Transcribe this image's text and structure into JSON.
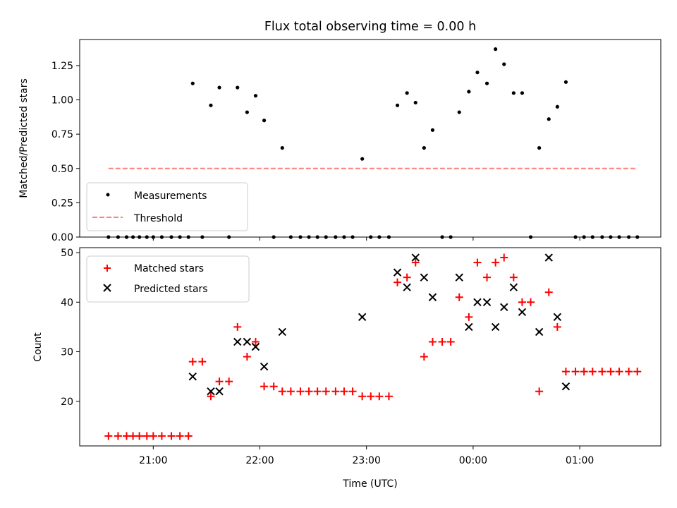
{
  "chart_data": [
    {
      "type": "scatter",
      "title": "Flux total observing time = 0.00 h",
      "xlabel": "",
      "ylabel": "Matched/Predicted stars",
      "ylim": [
        0,
        1.44
      ],
      "yticks": [
        "0.00",
        "0.25",
        "0.50",
        "0.75",
        "1.00",
        "1.25"
      ],
      "legend_position": "lower-left",
      "series": [
        {
          "name": "Measurements",
          "style": "dots",
          "color": "#000000",
          "points": [
            [
              20.58,
              0
            ],
            [
              20.67,
              0
            ],
            [
              20.75,
              0
            ],
            [
              20.81,
              0
            ],
            [
              20.87,
              0
            ],
            [
              20.94,
              0
            ],
            [
              21.0,
              0
            ],
            [
              21.08,
              0
            ],
            [
              21.17,
              0
            ],
            [
              21.25,
              0
            ],
            [
              21.33,
              0
            ],
            [
              21.37,
              1.12
            ],
            [
              21.46,
              0
            ],
            [
              21.54,
              0.96
            ],
            [
              21.62,
              1.09
            ],
            [
              21.71,
              0
            ],
            [
              21.79,
              1.09
            ],
            [
              21.88,
              0.91
            ],
            [
              21.96,
              1.03
            ],
            [
              22.04,
              0.85
            ],
            [
              22.13,
              0
            ],
            [
              22.21,
              0.65
            ],
            [
              22.29,
              0
            ],
            [
              22.38,
              0
            ],
            [
              22.46,
              0
            ],
            [
              22.54,
              0
            ],
            [
              22.62,
              0
            ],
            [
              22.71,
              0
            ],
            [
              22.79,
              0
            ],
            [
              22.87,
              0
            ],
            [
              22.96,
              0.57
            ],
            [
              23.04,
              0
            ],
            [
              23.12,
              0
            ],
            [
              23.21,
              0
            ],
            [
              23.29,
              0.96
            ],
            [
              23.38,
              1.05
            ],
            [
              23.46,
              0.98
            ],
            [
              23.54,
              0.65
            ],
            [
              23.62,
              0.78
            ],
            [
              23.71,
              0
            ],
            [
              23.79,
              0
            ],
            [
              23.87,
              0.91
            ],
            [
              23.96,
              1.06
            ],
            [
              24.04,
              1.2
            ],
            [
              24.13,
              1.12
            ],
            [
              24.21,
              1.37
            ],
            [
              24.29,
              1.26
            ],
            [
              24.38,
              1.05
            ],
            [
              24.46,
              1.05
            ],
            [
              24.54,
              0
            ],
            [
              24.62,
              0.65
            ],
            [
              24.71,
              0.86
            ],
            [
              24.79,
              0.95
            ],
            [
              24.87,
              1.13
            ],
            [
              24.96,
              0
            ],
            [
              25.04,
              0
            ],
            [
              25.12,
              0
            ],
            [
              25.21,
              0
            ],
            [
              25.29,
              0
            ],
            [
              25.37,
              0
            ],
            [
              25.46,
              0
            ],
            [
              25.54,
              0
            ]
          ]
        },
        {
          "name": "Threshold",
          "style": "dashed",
          "color": "#ff7f7f",
          "points": [
            [
              20.58,
              0.5
            ],
            [
              25.54,
              0.5
            ]
          ]
        }
      ]
    },
    {
      "type": "scatter",
      "title": "",
      "xlabel": "Time (UTC)",
      "ylabel": "Count",
      "ylim": [
        11,
        51
      ],
      "yticks": [
        "20",
        "30",
        "40",
        "50"
      ],
      "xlim": [
        20.31,
        25.76
      ],
      "xticks": [
        {
          "value": 21,
          "label": "21:00"
        },
        {
          "value": 22,
          "label": "22:00"
        },
        {
          "value": 23,
          "label": "23:00"
        },
        {
          "value": 24,
          "label": "00:00"
        },
        {
          "value": 25,
          "label": "01:00"
        }
      ],
      "legend_position": "upper-left",
      "series": [
        {
          "name": "Matched stars",
          "style": "plus",
          "color": "#ff0000",
          "points": [
            [
              20.58,
              13
            ],
            [
              20.67,
              13
            ],
            [
              20.75,
              13
            ],
            [
              20.81,
              13
            ],
            [
              20.87,
              13
            ],
            [
              20.94,
              13
            ],
            [
              21.0,
              13
            ],
            [
              21.08,
              13
            ],
            [
              21.17,
              13
            ],
            [
              21.25,
              13
            ],
            [
              21.33,
              13
            ],
            [
              21.37,
              28
            ],
            [
              21.46,
              28
            ],
            [
              21.54,
              21
            ],
            [
              21.62,
              24
            ],
            [
              21.71,
              24
            ],
            [
              21.79,
              35
            ],
            [
              21.88,
              29
            ],
            [
              21.96,
              32
            ],
            [
              22.04,
              23
            ],
            [
              22.13,
              23
            ],
            [
              22.21,
              22
            ],
            [
              22.29,
              22
            ],
            [
              22.38,
              22
            ],
            [
              22.46,
              22
            ],
            [
              22.54,
              22
            ],
            [
              22.62,
              22
            ],
            [
              22.71,
              22
            ],
            [
              22.79,
              22
            ],
            [
              22.87,
              22
            ],
            [
              22.96,
              21
            ],
            [
              23.04,
              21
            ],
            [
              23.12,
              21
            ],
            [
              23.21,
              21
            ],
            [
              23.29,
              44
            ],
            [
              23.38,
              45
            ],
            [
              23.46,
              48
            ],
            [
              23.54,
              29
            ],
            [
              23.62,
              32
            ],
            [
              23.71,
              32
            ],
            [
              23.79,
              32
            ],
            [
              23.87,
              41
            ],
            [
              23.96,
              37
            ],
            [
              24.04,
              48
            ],
            [
              24.13,
              45
            ],
            [
              24.21,
              48
            ],
            [
              24.29,
              49
            ],
            [
              24.38,
              45
            ],
            [
              24.46,
              40
            ],
            [
              24.54,
              40
            ],
            [
              24.62,
              22
            ],
            [
              24.71,
              42
            ],
            [
              24.79,
              35
            ],
            [
              24.87,
              26
            ],
            [
              24.96,
              26
            ],
            [
              25.04,
              26
            ],
            [
              25.12,
              26
            ],
            [
              25.21,
              26
            ],
            [
              25.29,
              26
            ],
            [
              25.37,
              26
            ],
            [
              25.46,
              26
            ],
            [
              25.54,
              26
            ]
          ]
        },
        {
          "name": "Predicted stars",
          "style": "x",
          "color": "#000000",
          "points": [
            [
              21.37,
              25
            ],
            [
              21.54,
              22
            ],
            [
              21.62,
              22
            ],
            [
              21.79,
              32
            ],
            [
              21.88,
              32
            ],
            [
              21.96,
              31
            ],
            [
              22.04,
              27
            ],
            [
              22.21,
              34
            ],
            [
              22.96,
              37
            ],
            [
              23.29,
              46
            ],
            [
              23.38,
              43
            ],
            [
              23.46,
              49
            ],
            [
              23.54,
              45
            ],
            [
              23.62,
              41
            ],
            [
              23.87,
              45
            ],
            [
              23.96,
              35
            ],
            [
              24.04,
              40
            ],
            [
              24.13,
              40
            ],
            [
              24.21,
              35
            ],
            [
              24.29,
              39
            ],
            [
              24.38,
              43
            ],
            [
              24.46,
              38
            ],
            [
              24.62,
              34
            ],
            [
              24.71,
              49
            ],
            [
              24.79,
              37
            ],
            [
              24.87,
              23
            ]
          ]
        }
      ]
    }
  ]
}
